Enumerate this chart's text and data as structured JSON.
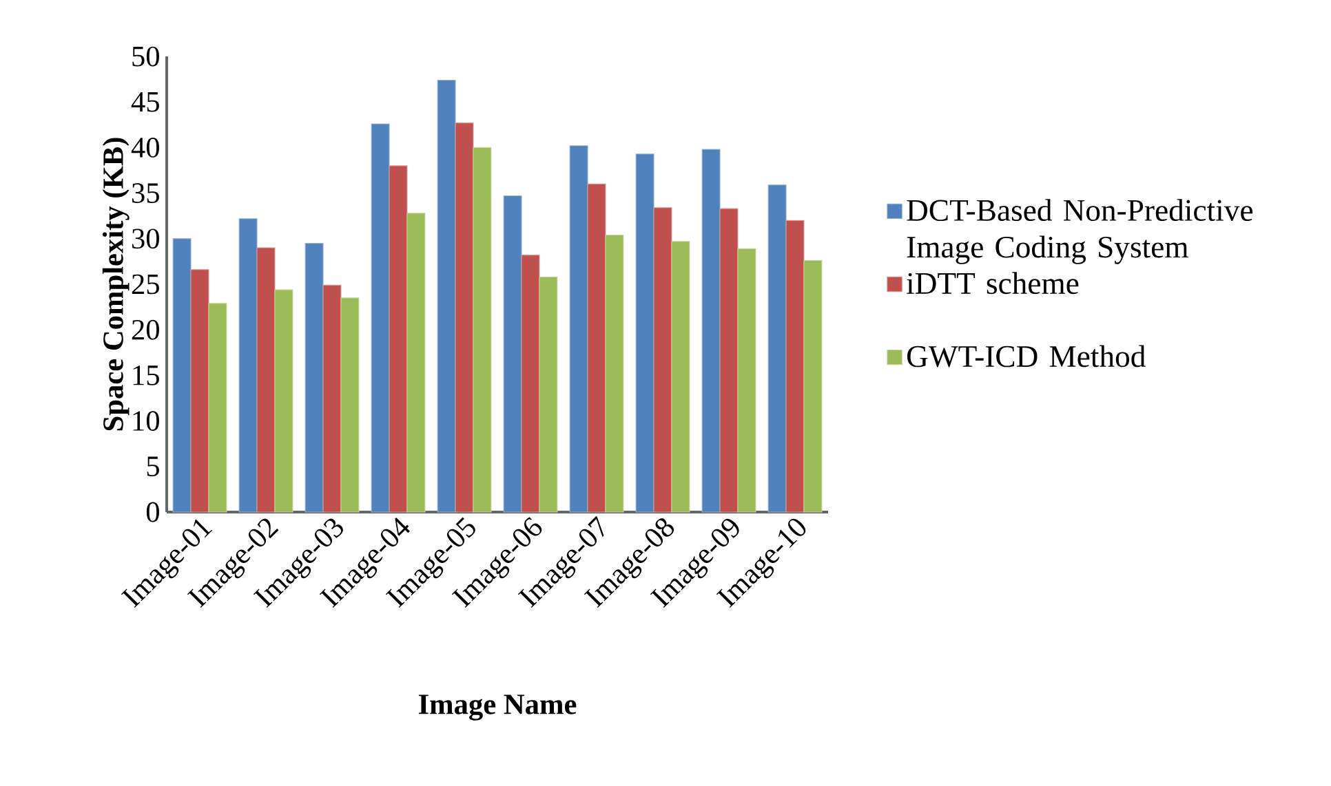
{
  "chart_data": {
    "type": "bar",
    "xlabel": "Image Name",
    "ylabel": "Space Complexity (KB)",
    "categories": [
      "Image-01",
      "Image-02",
      "Image-03",
      "Image-04",
      "Image-05",
      "Image-06",
      "Image-07",
      "Image-08",
      "Image-09",
      "Image-10"
    ],
    "series": [
      {
        "name": "DCT-Based Non-Predictive Image Coding System",
        "color": "#4f81bd",
        "values": [
          30.0,
          32.2,
          29.5,
          42.6,
          47.4,
          34.7,
          40.2,
          39.3,
          39.8,
          35.9
        ]
      },
      {
        "name": "iDTT scheme",
        "color": "#c0504d",
        "values": [
          26.6,
          29.0,
          24.9,
          38.0,
          42.7,
          28.2,
          36.0,
          33.4,
          33.3,
          32.0
        ]
      },
      {
        "name": "GWT-ICD Method",
        "color": "#9bbb59",
        "values": [
          22.9,
          24.4,
          23.5,
          32.8,
          40.0,
          25.8,
          30.4,
          29.7,
          28.9,
          27.6
        ]
      }
    ],
    "ylim": [
      0,
      50
    ],
    "yticks": [
      0,
      5,
      10,
      15,
      20,
      25,
      30,
      35,
      40,
      45,
      50
    ],
    "legend": "right"
  }
}
